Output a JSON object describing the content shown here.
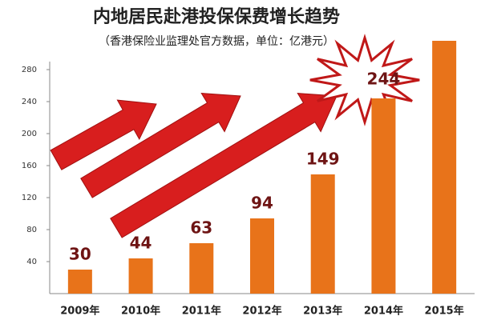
{
  "chart_data": {
    "type": "bar",
    "title": "内地居民赴港投保保费增长趋势",
    "subtitle": "（香港保险业监理处官方数据，单位：亿港元）",
    "categories": [
      "2009年",
      "2010年",
      "2011年",
      "2012年",
      "2013年",
      "2014年",
      "2015年"
    ],
    "values": [
      30,
      44,
      63,
      94,
      149,
      244,
      316
    ],
    "value_labels": [
      "30",
      "44",
      "63",
      "94",
      "149",
      "244",
      null
    ],
    "color": "#e8731a",
    "ylim": [
      0,
      320
    ],
    "yticks": [
      40,
      80,
      120,
      160,
      200,
      240,
      280
    ],
    "grid": false
  }
}
